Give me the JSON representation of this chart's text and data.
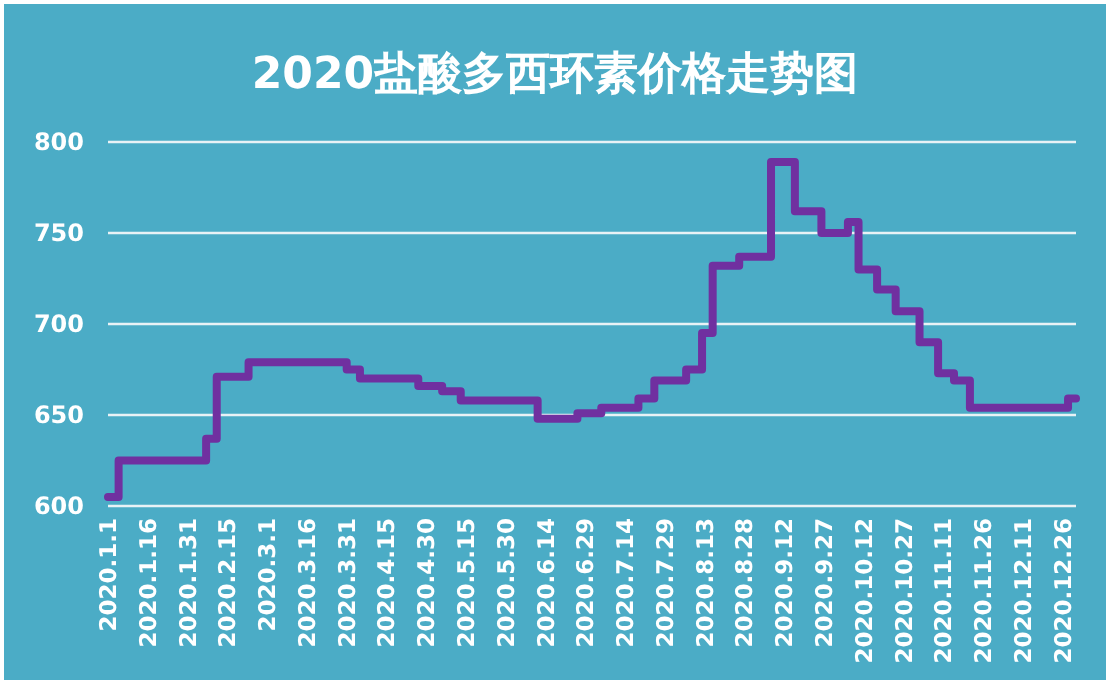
{
  "chart_data": {
    "type": "step",
    "title": "2020盐酸多西环素价格走势图",
    "x": [
      "2020-01-01",
      "2020-01-05",
      "2020-02-07",
      "2020-02-11",
      "2020-02-23",
      "2020-03-31",
      "2020-04-05",
      "2020-04-27",
      "2020-05-06",
      "2020-05-13",
      "2020-06-11",
      "2020-06-26",
      "2020-07-05",
      "2020-07-19",
      "2020-07-25",
      "2020-08-06",
      "2020-08-12",
      "2020-08-16",
      "2020-08-26",
      "2020-09-07",
      "2020-09-16",
      "2020-09-26",
      "2020-10-06",
      "2020-10-10",
      "2020-10-17",
      "2020-10-24",
      "2020-11-02",
      "2020-11-09",
      "2020-11-15",
      "2020-11-21",
      "2020-12-28",
      "2020-12-31"
    ],
    "series": [
      {
        "color": "#7030a0",
        "values": [
          605,
          625,
          637,
          671,
          679,
          675,
          670,
          666,
          663,
          658,
          648,
          651,
          654,
          659,
          669,
          675,
          695,
          732,
          737,
          789,
          762,
          750,
          756,
          730,
          719,
          707,
          690,
          673,
          669,
          654,
          659,
          659
        ]
      }
    ],
    "xlim": [
      "2020-01-01",
      "2020-12-31"
    ],
    "xticks": [
      {
        "value": "2020-01-01",
        "label": "2020.1.1"
      },
      {
        "value": "2020-01-16",
        "label": "2020.1.16"
      },
      {
        "value": "2020-01-31",
        "label": "2020.1.31"
      },
      {
        "value": "2020-02-15",
        "label": "2020.2.15"
      },
      {
        "value": "2020-03-01",
        "label": "2020.3.1"
      },
      {
        "value": "2020-03-16",
        "label": "2020.3.16"
      },
      {
        "value": "2020-03-31",
        "label": "2020.3.31"
      },
      {
        "value": "2020-04-15",
        "label": "2020.4.15"
      },
      {
        "value": "2020-04-30",
        "label": "2020.4.30"
      },
      {
        "value": "2020-05-15",
        "label": "2020.5.15"
      },
      {
        "value": "2020-05-30",
        "label": "2020.5.30"
      },
      {
        "value": "2020-06-14",
        "label": "2020.6.14"
      },
      {
        "value": "2020-06-29",
        "label": "2020.6.29"
      },
      {
        "value": "2020-07-14",
        "label": "2020.7.14"
      },
      {
        "value": "2020-07-29",
        "label": "2020.7.29"
      },
      {
        "value": "2020-08-13",
        "label": "2020.8.13"
      },
      {
        "value": "2020-08-28",
        "label": "2020.8.28"
      },
      {
        "value": "2020-09-12",
        "label": "2020.9.12"
      },
      {
        "value": "2020-09-27",
        "label": "2020.9.27"
      },
      {
        "value": "2020-10-12",
        "label": "2020.10.12"
      },
      {
        "value": "2020-10-27",
        "label": "2020.10.27"
      },
      {
        "value": "2020-11-11",
        "label": "2020.11.11"
      },
      {
        "value": "2020-11-26",
        "label": "2020.11.26"
      },
      {
        "value": "2020-12-11",
        "label": "2020.12.11"
      },
      {
        "value": "2020-12-26",
        "label": "2020.12.26"
      }
    ],
    "ylim": [
      600,
      800
    ],
    "yticks": [
      600,
      650,
      700,
      750,
      800
    ],
    "grid": "y"
  }
}
